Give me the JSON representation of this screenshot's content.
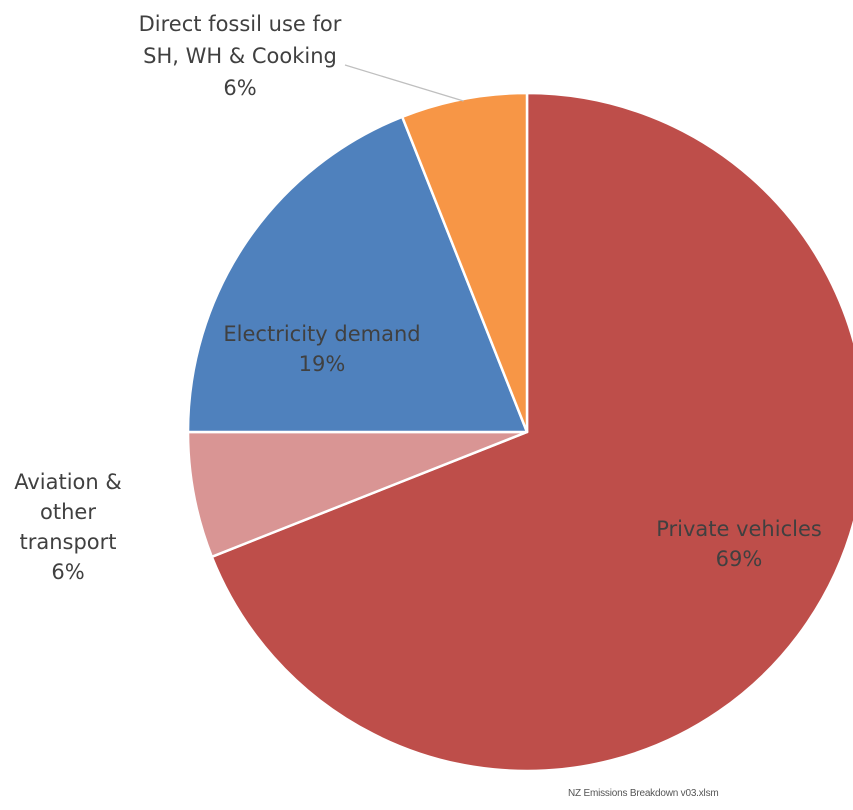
{
  "chart_data": {
    "type": "pie",
    "title": "",
    "slices": [
      {
        "label_lines": [
          "Private vehicles"
        ],
        "value": 69,
        "value_label": "69%",
        "color": "#BE4E4A"
      },
      {
        "label_lines": [
          "Aviation &",
          "other",
          "transport"
        ],
        "value": 6,
        "value_label": "6%",
        "color": "#D99594"
      },
      {
        "label_lines": [
          "Electricity demand"
        ],
        "value": 19,
        "value_label": "19%",
        "color": "#4F81BD"
      },
      {
        "label_lines": [
          "Direct fossil use for",
          "SH, WH & Cooking"
        ],
        "value": 6,
        "value_label": "6%",
        "color": "#F79646"
      }
    ]
  },
  "footer": {
    "source_file": "NZ Emissions Breakdown v03.xlsm"
  }
}
